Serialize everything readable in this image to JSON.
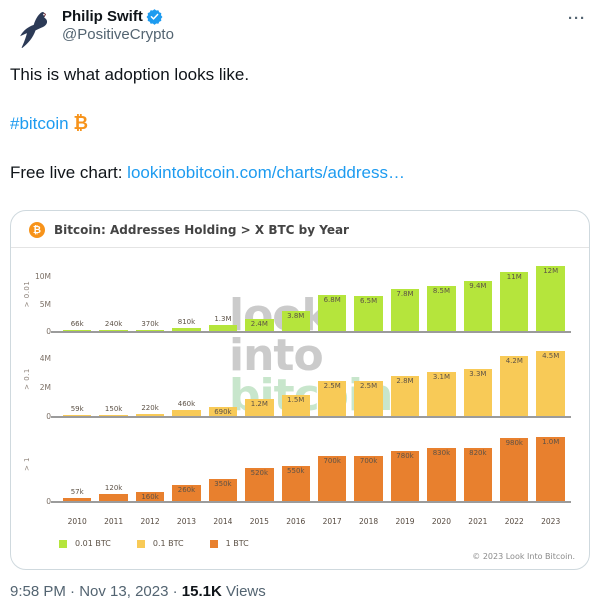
{
  "header": {
    "display_name": "Philip Swift",
    "handle": "@PositiveCrypto",
    "more_label": "···"
  },
  "tweet": {
    "line1": "This is what adoption looks like.",
    "hashtag": "#bitcoin",
    "bitcoin_emoji": "₿",
    "chart_line_prefix": "Free live chart:",
    "link_text": "lookintobitcoin.com/charts/address…"
  },
  "footer": {
    "time": "9:58 PM",
    "separator": "·",
    "date": "Nov 13, 2023",
    "views_count": "15.1K",
    "views_label": "Views"
  },
  "colors": {
    "link_blue": "#1d9bf0",
    "bitcoin_orange": "#f7931a",
    "green_bar": "#b5e53c",
    "yellow_bar": "#f8ca57",
    "orange_bar": "#e8802e"
  },
  "chart_data": {
    "type": "bar",
    "title": "Bitcoin: Addresses Holding > X BTC by Year",
    "categories": [
      "2010",
      "2011",
      "2012",
      "2013",
      "2014",
      "2015",
      "2016",
      "2017",
      "2018",
      "2019",
      "2020",
      "2021",
      "2022",
      "2023"
    ],
    "legend_position": "bottom-left",
    "grid": false,
    "copyright": "© 2023 Look Into Bitcoin.",
    "watermark": {
      "lines": [
        {
          "text": "look",
          "color": "#cbcbcb"
        },
        {
          "text": "into",
          "color": "#cbcbcb"
        },
        {
          "text": "bitcoin",
          "color": "#c8e6cc"
        }
      ]
    },
    "panels": [
      {
        "series_name": "0.01 BTC",
        "axis_label": "> 0.01",
        "color": "#b5e53c",
        "y_max": 12800000,
        "y_ticks": [
          {
            "label": "10M",
            "value": 10000000
          },
          {
            "label": "5M",
            "value": 5000000
          },
          {
            "label": "0",
            "value": 0
          }
        ],
        "values": [
          66000,
          240000,
          370000,
          810000,
          1300000,
          2400000,
          3800000,
          6800000,
          6500000,
          7800000,
          8500000,
          9400000,
          11000000,
          12000000
        ],
        "value_labels": [
          "66k",
          "240k",
          "370k",
          "810k",
          "1.3M",
          "2.4M",
          "3.8M",
          "6.8M",
          "6.5M",
          "7.8M",
          "8.5M",
          "9.4M",
          "11M",
          "12M"
        ]
      },
      {
        "series_name": "0.1 BTC",
        "axis_label": "> 0.1",
        "color": "#f8ca57",
        "y_max": 4800000,
        "y_ticks": [
          {
            "label": "4M",
            "value": 4000000
          },
          {
            "label": "2M",
            "value": 2000000
          },
          {
            "label": "0",
            "value": 0
          }
        ],
        "values": [
          59000,
          150000,
          220000,
          460000,
          690000,
          1200000,
          1500000,
          2500000,
          2500000,
          2800000,
          3100000,
          3300000,
          4200000,
          4500000
        ],
        "value_labels": [
          "59k",
          "150k",
          "220k",
          "460k",
          "690k",
          "1.2M",
          "1.5M",
          "2.5M",
          "2.5M",
          "2.8M",
          "3.1M",
          "3.3M",
          "4.2M",
          "4.5M"
        ]
      },
      {
        "series_name": "1 BTC",
        "axis_label": "> 1",
        "color": "#e8802e",
        "y_max": 1070000,
        "y_ticks": [
          {
            "label": "0",
            "value": 0
          }
        ],
        "values": [
          57000,
          120000,
          160000,
          260000,
          350000,
          520000,
          550000,
          700000,
          700000,
          780000,
          830000,
          820000,
          980000,
          1000000
        ],
        "value_labels": [
          "57k",
          "120k",
          "160k",
          "260k",
          "350k",
          "520k",
          "550k",
          "700k",
          "700k",
          "780k",
          "830k",
          "820k",
          "980k",
          "1.0M"
        ]
      }
    ],
    "legend": [
      {
        "label": "0.01 BTC",
        "color": "#b5e53c"
      },
      {
        "label": "0.1 BTC",
        "color": "#f8ca57"
      },
      {
        "label": "1 BTC",
        "color": "#e8802e"
      }
    ]
  }
}
